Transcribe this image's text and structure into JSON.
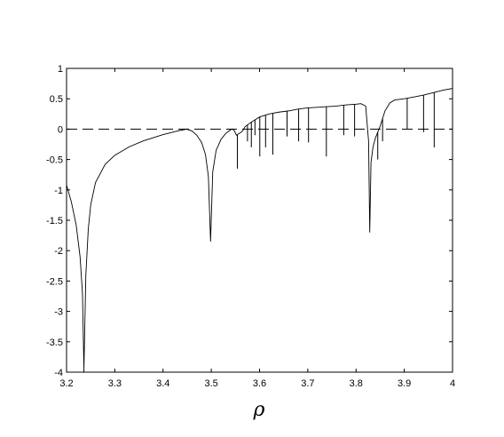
{
  "chart_data": {
    "type": "line",
    "title": "",
    "xlabel": "ρ",
    "ylabel": "",
    "xlim": [
      3.2,
      4.0
    ],
    "ylim": [
      -4,
      1
    ],
    "x_ticks": [
      3.2,
      3.3,
      3.4,
      3.5,
      3.6,
      3.7,
      3.8,
      3.9,
      4.0
    ],
    "x_tick_labels": [
      "3.2",
      "3.3",
      "3.4",
      "3.5",
      "3.6",
      "3.7",
      "3.8",
      "3.9",
      "4"
    ],
    "y_ticks": [
      1,
      0.5,
      0,
      -0.5,
      -1,
      -1.5,
      -2,
      -2.5,
      -3,
      -3.5,
      -4
    ],
    "y_tick_labels": [
      "1",
      "0.5",
      "0",
      "-0.5",
      "-1",
      "-1.5",
      "-2",
      "-2.5",
      "-3",
      "-3.5",
      "-4"
    ],
    "grid": false,
    "reference_line": {
      "y": 0,
      "style": "dashed"
    },
    "spikes": [
      {
        "x": 3.236,
        "y": -4.0
      },
      {
        "x": 3.4985,
        "y": -1.85
      },
      {
        "x": 3.554,
        "y": -0.65
      },
      {
        "x": 3.575,
        "y": -0.2
      },
      {
        "x": 3.583,
        "y": -0.3
      },
      {
        "x": 3.5905,
        "y": -0.1
      },
      {
        "x": 3.6005,
        "y": -0.45
      },
      {
        "x": 3.6125,
        "y": -0.3
      },
      {
        "x": 3.6275,
        "y": -0.42
      },
      {
        "x": 3.657,
        "y": -0.12
      },
      {
        "x": 3.681,
        "y": -0.2
      },
      {
        "x": 3.7015,
        "y": -0.22
      },
      {
        "x": 3.7385,
        "y": -0.45
      },
      {
        "x": 3.7745,
        "y": -0.1
      },
      {
        "x": 3.797,
        "y": -0.12
      },
      {
        "x": 3.8284,
        "y": -1.7
      },
      {
        "x": 3.845,
        "y": -0.5
      },
      {
        "x": 3.855,
        "y": -0.2
      },
      {
        "x": 3.906,
        "y": 0.0
      },
      {
        "x": 3.94,
        "y": -0.05
      },
      {
        "x": 3.962,
        "y": -0.3
      }
    ],
    "series": [
      {
        "x": [
          3.2,
          3.21,
          3.22,
          3.228,
          3.233,
          3.236,
          3.24,
          3.245,
          3.25,
          3.26,
          3.28,
          3.3,
          3.33,
          3.36,
          3.4,
          3.43,
          3.449,
          3.46,
          3.47,
          3.48,
          3.488,
          3.494,
          3.4985,
          3.503,
          3.51,
          3.52,
          3.53,
          3.54,
          3.5441,
          3.548,
          3.552,
          3.556,
          3.56,
          3.565,
          3.57,
          3.58,
          3.59,
          3.6,
          3.62,
          3.64,
          3.66,
          3.68,
          3.7,
          3.72,
          3.74,
          3.76,
          3.78,
          3.8,
          3.81,
          3.82,
          3.826,
          3.8284,
          3.831,
          3.835,
          3.84,
          3.845,
          3.85,
          3.86,
          3.87,
          3.88,
          3.9,
          3.92,
          3.94,
          3.96,
          3.98,
          4.0
        ],
        "y": [
          -0.92,
          -1.2,
          -1.58,
          -2.1,
          -2.7,
          -3.95,
          -2.4,
          -1.65,
          -1.25,
          -0.88,
          -0.58,
          -0.43,
          -0.29,
          -0.19,
          -0.09,
          -0.03,
          0.0,
          -0.03,
          -0.1,
          -0.22,
          -0.42,
          -0.78,
          -1.85,
          -0.7,
          -0.35,
          -0.17,
          -0.07,
          -0.01,
          0.0,
          -0.03,
          -0.1,
          -0.08,
          -0.06,
          -0.03,
          0.04,
          0.1,
          0.15,
          0.2,
          0.25,
          0.28,
          0.3,
          0.33,
          0.35,
          0.36,
          0.37,
          0.38,
          0.4,
          0.41,
          0.42,
          0.38,
          -0.2,
          -1.7,
          -0.55,
          -0.3,
          -0.15,
          -0.05,
          0.05,
          0.3,
          0.43,
          0.48,
          0.5,
          0.53,
          0.56,
          0.6,
          0.64,
          0.67
        ]
      }
    ]
  }
}
